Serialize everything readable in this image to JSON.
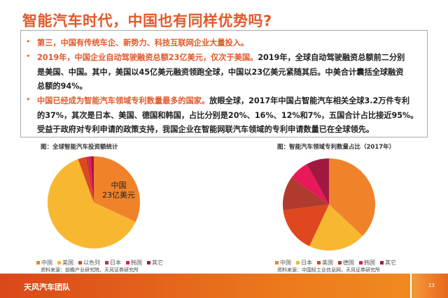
{
  "title": "智能汽车时代，中国也有同样优势吗?",
  "bullets": [
    {
      "highlight": "第三，中国有传统车企、新势力、科技互联网企业大量投入。",
      "lines": []
    },
    {
      "highlight": "2019年，中国企业自动驾驶融资总额23亿美元，仅次于美国。",
      "rest": "2019年，全球自动驾驶融资总额前二分别",
      "lines": [
        "是美国、中国。其中，美国以45亿美元融资领跑全球，中国以23亿美元紧随其后。中美合计囊括全球融资",
        "总额的94%。"
      ]
    },
    {
      "highlight": "中国已经成为智能汽车领域专利数量最多的国家。",
      "rest": "放眼全球，2017年中国占智能汽车相关全球3.2万件专利",
      "lines": [
        "的37%，其次是日本、美国、德国和韩国，占比分别是20%、16%、12%和7%，五国合计占比接近95%。",
        "受益于政府对专利申请的政策支持，我国企业在智能网联汽车领域的专利申请数量已在全球领先。"
      ]
    }
  ],
  "chart_data": [
    {
      "type": "pie",
      "title": "图：全球智能汽车投资额统计",
      "categories": [
        "中国",
        "美国",
        "以色列",
        "日本",
        "韩国",
        "其它"
      ],
      "values": [
        23,
        45,
        2,
        0.5,
        0.7,
        0.8
      ],
      "colors": [
        "#f0822a",
        "#f7b731",
        "#e0471f",
        "#b03a2e",
        "#e8185a",
        "#a3183f"
      ],
      "data_label": {
        "line1": "中国",
        "line2": "23亿美元"
      },
      "source": "资料来源：前瞻产业研究院，天风证券研究所"
    },
    {
      "type": "pie",
      "title": "图：智能汽车领域专利数量占比（2017年）",
      "categories": [
        "中国",
        "日本",
        "美国",
        "德国",
        "韩国",
        "其它"
      ],
      "values": [
        37,
        20,
        16,
        12,
        7,
        8
      ],
      "colors": [
        "#f0822a",
        "#f7b731",
        "#e0471f",
        "#b03a2e",
        "#e8185a",
        "#a3183f"
      ],
      "source": "资料来源：中国轻工业信息网，天风证券研究所"
    }
  ],
  "footer": {
    "team": "天风汽车团队",
    "page": "13"
  }
}
